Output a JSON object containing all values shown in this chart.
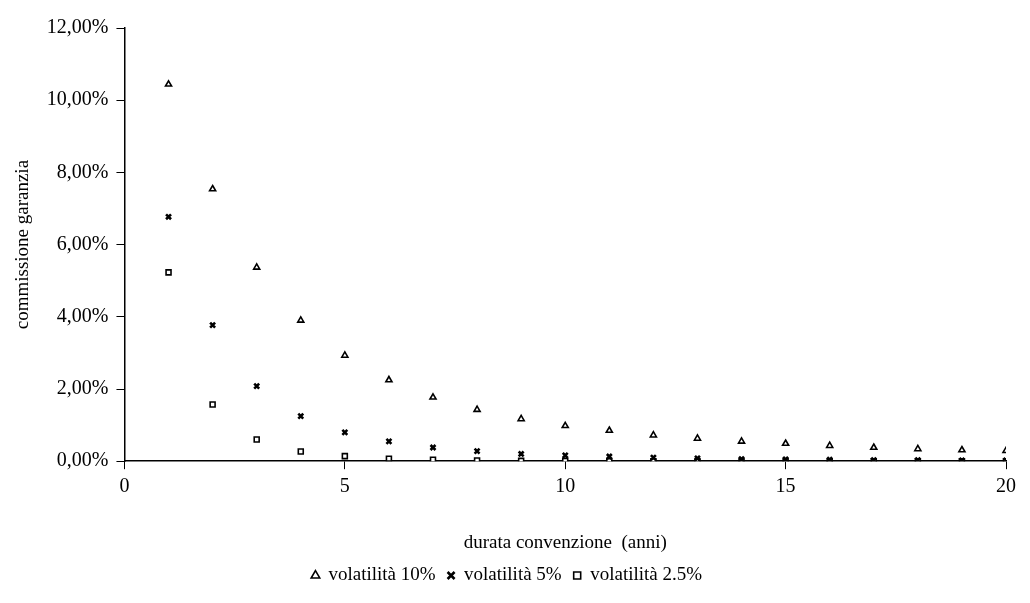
{
  "chart_data": {
    "type": "scatter",
    "xlabel": "durata convenzione  (anni)",
    "ylabel": "commissione garanzia",
    "x": [
      1,
      2,
      3,
      4,
      5,
      6,
      7,
      8,
      9,
      10,
      11,
      12,
      13,
      14,
      15,
      16,
      17,
      18,
      19,
      20
    ],
    "series": [
      {
        "name": "volatilità 10%",
        "color": "#000000",
        "marker": "triangle",
        "values": [
          10.44,
          7.54,
          5.37,
          3.9,
          2.93,
          2.25,
          1.77,
          1.43,
          1.17,
          0.98,
          0.85,
          0.72,
          0.63,
          0.55,
          0.49,
          0.43,
          0.38,
          0.34,
          0.31,
          0.29
        ]
      },
      {
        "name": "volatilità 5%",
        "color": "#000000",
        "marker": "cross",
        "values": [
          6.77,
          3.77,
          2.08,
          1.25,
          0.8,
          0.55,
          0.38,
          0.28,
          0.2,
          0.16,
          0.13,
          0.1,
          0.08,
          0.06,
          0.05,
          0.04,
          0.03,
          0.03,
          0.02,
          0.02
        ]
      },
      {
        "name": "volatilità 2.5%",
        "color": "#000000",
        "marker": "square",
        "values": [
          5.23,
          1.57,
          0.6,
          0.27,
          0.14,
          0.07,
          0.04,
          0.02,
          0.01,
          0.01,
          0,
          0,
          0,
          0,
          0,
          0,
          0,
          0,
          0,
          0
        ]
      }
    ],
    "xlim": [
      0,
      20
    ],
    "xticks": [
      0,
      5,
      10,
      15,
      20
    ],
    "ylim": [
      0,
      12
    ],
    "yticks": [
      {
        "value": 0,
        "label": "0,00%"
      },
      {
        "value": 2,
        "label": "2,00%"
      },
      {
        "value": 4,
        "label": "4,00%"
      },
      {
        "value": 6,
        "label": "6,00%"
      },
      {
        "value": 8,
        "label": "8,00%"
      },
      {
        "value": 10,
        "label": "10,00%"
      },
      {
        "value": 12,
        "label": "12,00%"
      }
    ],
    "grid": false,
    "legend": "bottom"
  }
}
